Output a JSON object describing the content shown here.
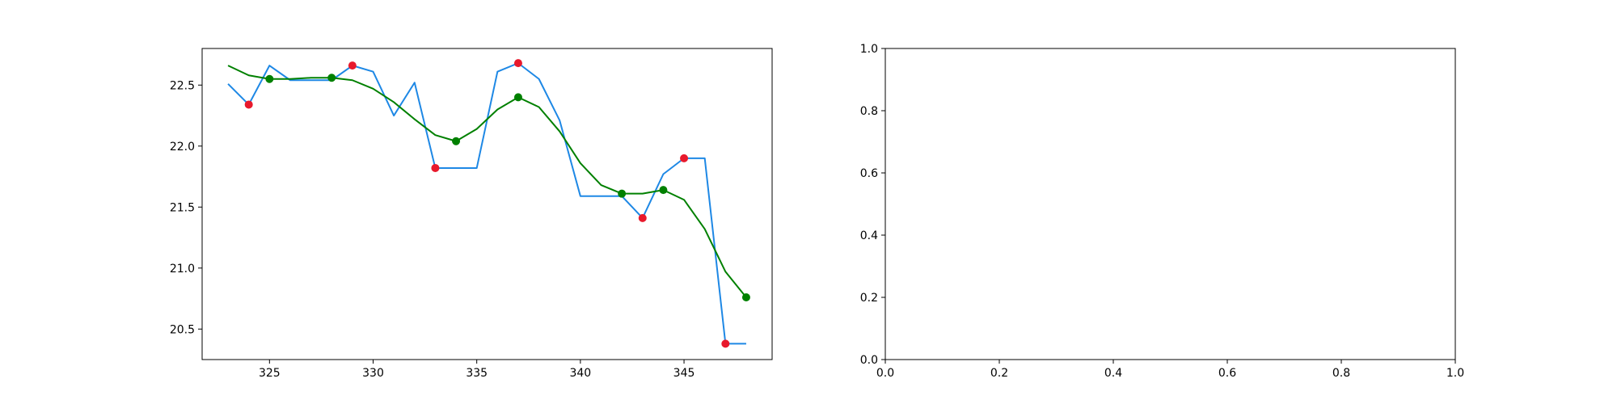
{
  "chart_data": [
    {
      "type": "line",
      "title": "",
      "xlabel": "",
      "ylabel": "",
      "xlim": [
        321.75,
        349.25
      ],
      "ylim": [
        20.25,
        22.8
      ],
      "grid": false,
      "x_ticks": [
        325,
        330,
        335,
        340,
        345
      ],
      "y_ticks": [
        20.5,
        21.0,
        21.5,
        22.0,
        22.5
      ],
      "x_tick_labels": [
        "325",
        "330",
        "335",
        "340",
        "345"
      ],
      "y_tick_labels": [
        "20.5",
        "21.0",
        "21.5",
        "22.0",
        "22.5"
      ],
      "series": [
        {
          "kind": "line",
          "color": "#1e88e5",
          "x": [
            323,
            324,
            325,
            326,
            327,
            328,
            329,
            330,
            331,
            332,
            333,
            334,
            335,
            336,
            337,
            338,
            339,
            340,
            341,
            342,
            343,
            344,
            345,
            346,
            347,
            348
          ],
          "y": [
            22.51,
            22.34,
            22.66,
            22.54,
            22.54,
            22.54,
            22.66,
            22.61,
            22.25,
            22.52,
            21.82,
            21.82,
            21.82,
            22.61,
            22.68,
            22.55,
            22.21,
            21.59,
            21.59,
            21.59,
            21.41,
            21.77,
            21.9,
            21.9,
            20.38,
            20.38
          ]
        },
        {
          "kind": "line",
          "color": "#008000",
          "x": [
            323,
            324,
            325,
            326,
            327,
            328,
            329,
            330,
            331,
            332,
            333,
            334,
            335,
            336,
            337,
            338,
            339,
            340,
            341,
            342,
            343,
            344,
            345,
            346,
            347,
            348
          ],
          "y": [
            22.66,
            22.58,
            22.55,
            22.55,
            22.56,
            22.56,
            22.54,
            22.47,
            22.36,
            22.22,
            22.09,
            22.04,
            22.14,
            22.3,
            22.4,
            22.32,
            22.12,
            21.86,
            21.68,
            21.61,
            21.61,
            21.64,
            21.56,
            21.32,
            20.97,
            20.76
          ]
        },
        {
          "kind": "scatter",
          "color": "#e8192c",
          "x": [
            324,
            329,
            333,
            337,
            343,
            345,
            347
          ],
          "y": [
            22.34,
            22.66,
            21.82,
            22.68,
            21.41,
            21.9,
            20.38
          ]
        },
        {
          "kind": "scatter",
          "color": "#008000",
          "x": [
            325,
            328,
            334,
            337,
            342,
            344,
            348
          ],
          "y": [
            22.55,
            22.56,
            22.04,
            22.4,
            21.61,
            21.64,
            20.76
          ]
        }
      ]
    },
    {
      "type": "line",
      "title": "",
      "xlabel": "",
      "ylabel": "",
      "xlim": [
        0.0,
        1.0
      ],
      "ylim": [
        0.0,
        1.0
      ],
      "grid": false,
      "x_ticks": [
        0.0,
        0.2,
        0.4,
        0.6,
        0.8,
        1.0
      ],
      "y_ticks": [
        0.0,
        0.2,
        0.4,
        0.6,
        0.8,
        1.0
      ],
      "x_tick_labels": [
        "0.0",
        "0.2",
        "0.4",
        "0.6",
        "0.8",
        "1.0"
      ],
      "y_tick_labels": [
        "0.0",
        "0.2",
        "0.4",
        "0.6",
        "0.8",
        "1.0"
      ],
      "series": []
    }
  ]
}
